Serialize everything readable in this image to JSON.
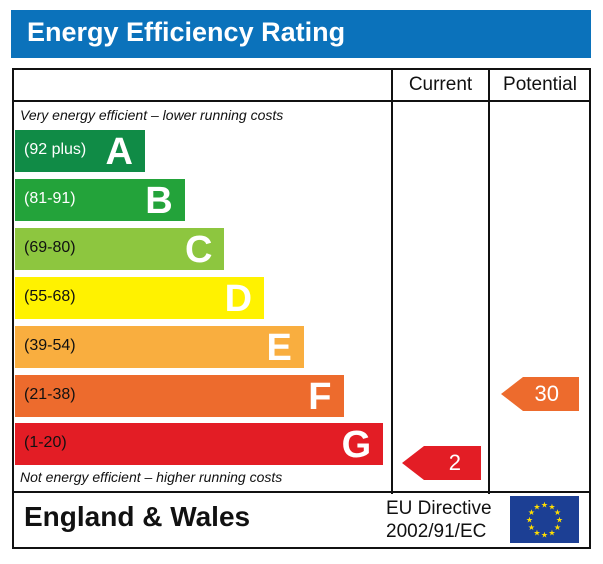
{
  "title": "Energy Efficiency Rating",
  "columns": {
    "current": "Current",
    "potential": "Potential"
  },
  "top_note": "Very energy efficient – lower running costs",
  "bottom_note": "Not energy efficient – higher running costs",
  "footer": {
    "country": "England & Wales",
    "directive_line1": "EU Directive",
    "directive_line2": "2002/91/EC",
    "flag_icon": "eu-flag-icon"
  },
  "chart_data": {
    "type": "bar",
    "bands": [
      {
        "range": "(92 plus)",
        "letter": "A",
        "color": "#108b46",
        "text_color": "#ffffff"
      },
      {
        "range": "(81-91)",
        "letter": "B",
        "color": "#23a33a",
        "text_color": "#ffffff"
      },
      {
        "range": "(69-80)",
        "letter": "C",
        "color": "#8dc63f",
        "text_color": "#111111"
      },
      {
        "range": "(55-68)",
        "letter": "D",
        "color": "#fff200",
        "text_color": "#111111"
      },
      {
        "range": "(39-54)",
        "letter": "E",
        "color": "#f9ae3f",
        "text_color": "#111111"
      },
      {
        "range": "(21-38)",
        "letter": "F",
        "color": "#ed6b2d",
        "text_color": "#111111"
      },
      {
        "range": "(1-20)",
        "letter": "G",
        "color": "#e31d25",
        "text_color": "#111111"
      }
    ],
    "current": {
      "value": "2",
      "band": "G",
      "color": "#e31d25"
    },
    "potential": {
      "value": "30",
      "band": "F",
      "color": "#ed6b2d"
    }
  }
}
